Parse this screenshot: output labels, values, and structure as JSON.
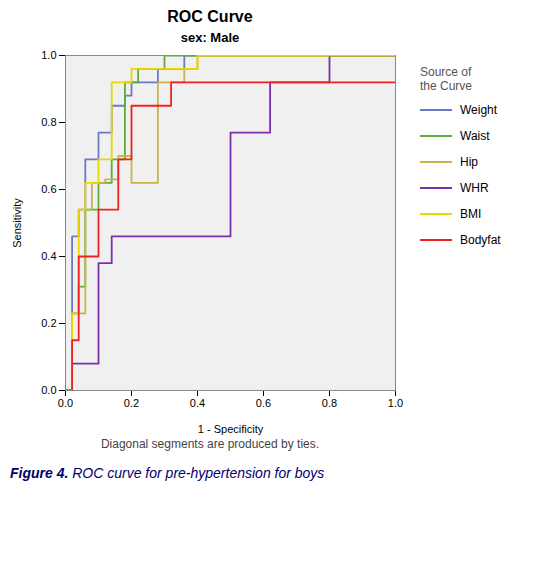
{
  "chart_data": {
    "type": "line",
    "title": "ROC Curve",
    "subtitle": "sex: Male",
    "xlabel": "1 - Specificity",
    "ylabel": "Sensitivity",
    "legend_title": "Source of\nthe Curve",
    "footnote": "Diagonal segments are produced by ties.",
    "caption_bold": "Figure 4.",
    "caption": "ROC curve for pre-hypertension for boys",
    "xlim": [
      0.0,
      1.0
    ],
    "ylim": [
      0.0,
      1.0
    ],
    "xticks": [
      {
        "value": 0.0,
        "label": "0.0"
      },
      0.2,
      0.4,
      0.6,
      0.8,
      {
        "value": 1.0,
        "label": "1.0"
      }
    ],
    "yticks": [
      {
        "value": 0.0,
        "label": "0.0"
      },
      0.2,
      0.4,
      0.6,
      0.8,
      {
        "value": 1.0,
        "label": "1.0"
      }
    ],
    "grid": false,
    "series": [
      {
        "name": "Weight",
        "color": "#6a79c8",
        "x": [
          0.0,
          0.02,
          0.02,
          0.04,
          0.04,
          0.06,
          0.06,
          0.1,
          0.1,
          0.14,
          0.14,
          0.18,
          0.18,
          0.2,
          0.2,
          0.28,
          0.28,
          0.36,
          0.36,
          0.4,
          0.4,
          1.0
        ],
        "values": [
          0.0,
          0.0,
          0.46,
          0.46,
          0.54,
          0.54,
          0.69,
          0.69,
          0.77,
          0.77,
          0.85,
          0.85,
          0.88,
          0.88,
          0.92,
          0.92,
          0.96,
          0.96,
          1.0,
          1.0,
          1.0,
          1.0
        ]
      },
      {
        "name": "Waist",
        "color": "#5aad3c",
        "x": [
          0.0,
          0.02,
          0.02,
          0.04,
          0.04,
          0.06,
          0.06,
          0.1,
          0.1,
          0.14,
          0.14,
          0.18,
          0.18,
          0.22,
          0.22,
          0.3,
          0.3,
          0.38,
          0.38,
          1.0
        ],
        "values": [
          0.0,
          0.0,
          0.23,
          0.23,
          0.31,
          0.31,
          0.54,
          0.54,
          0.62,
          0.62,
          0.69,
          0.69,
          0.92,
          0.92,
          0.96,
          0.96,
          1.0,
          1.0,
          1.0,
          1.0
        ]
      },
      {
        "name": "Hip",
        "color": "#c8b44a",
        "x": [
          0.0,
          0.02,
          0.02,
          0.06,
          0.06,
          0.08,
          0.08,
          0.12,
          0.12,
          0.16,
          0.16,
          0.2,
          0.2,
          0.28,
          0.28,
          0.36,
          0.36,
          0.4,
          0.4,
          1.0
        ],
        "values": [
          0.0,
          0.0,
          0.23,
          0.23,
          0.54,
          0.54,
          0.62,
          0.62,
          0.63,
          0.63,
          0.7,
          0.7,
          0.62,
          0.62,
          0.92,
          0.92,
          0.96,
          0.96,
          1.0,
          1.0
        ]
      },
      {
        "name": "WHR",
        "color": "#7b2faa",
        "x": [
          0.0,
          0.02,
          0.02,
          0.06,
          0.06,
          0.1,
          0.1,
          0.14,
          0.14,
          0.2,
          0.2,
          0.26,
          0.26,
          0.5,
          0.5,
          0.62,
          0.62,
          0.8,
          0.8,
          1.0
        ],
        "values": [
          0.0,
          0.0,
          0.08,
          0.08,
          0.08,
          0.08,
          0.38,
          0.38,
          0.46,
          0.46,
          0.46,
          0.46,
          0.46,
          0.46,
          0.77,
          0.77,
          0.92,
          0.92,
          1.0,
          1.0
        ]
      },
      {
        "name": "BMI",
        "color": "#e8d800",
        "x": [
          0.0,
          0.02,
          0.02,
          0.04,
          0.04,
          0.06,
          0.06,
          0.1,
          0.1,
          0.14,
          0.14,
          0.2,
          0.2,
          0.32,
          0.32,
          0.4,
          0.4,
          1.0
        ],
        "values": [
          0.0,
          0.0,
          0.23,
          0.23,
          0.54,
          0.54,
          0.62,
          0.62,
          0.69,
          0.69,
          0.92,
          0.92,
          0.96,
          0.96,
          0.96,
          0.96,
          1.0,
          1.0
        ]
      },
      {
        "name": "Bodyfat",
        "color": "#ee2222",
        "x": [
          0.0,
          0.02,
          0.02,
          0.04,
          0.04,
          0.1,
          0.1,
          0.16,
          0.16,
          0.2,
          0.2,
          0.32,
          0.32,
          0.62,
          0.62,
          0.66,
          0.66,
          1.0
        ],
        "values": [
          0.0,
          0.0,
          0.15,
          0.15,
          0.4,
          0.4,
          0.54,
          0.54,
          0.69,
          0.69,
          0.85,
          0.85,
          0.92,
          0.92,
          0.92,
          0.92,
          0.92,
          0.92
        ]
      }
    ]
  }
}
